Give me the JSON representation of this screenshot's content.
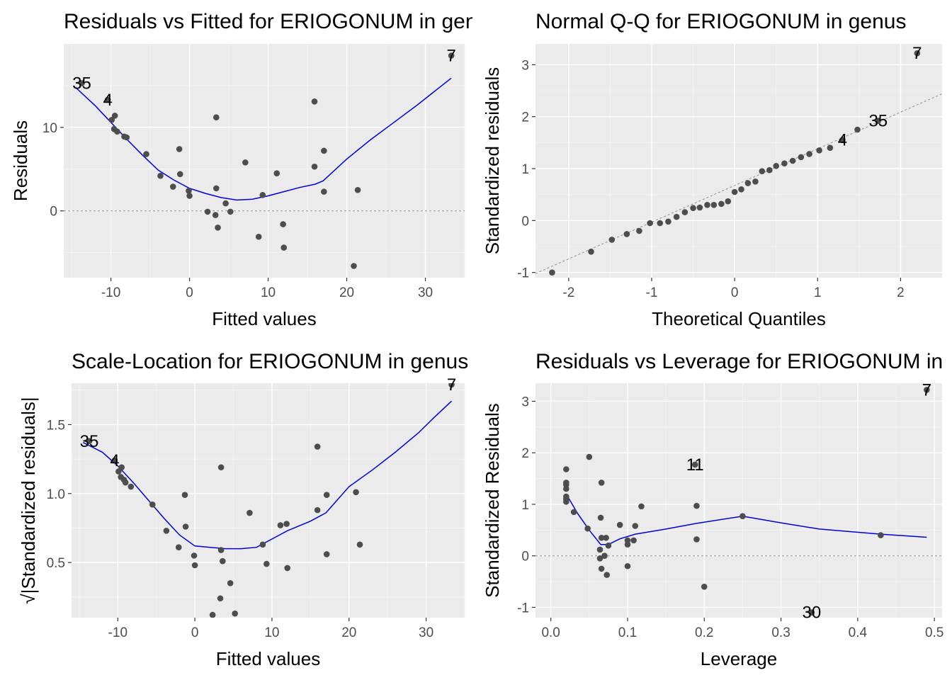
{
  "chart_data": [
    {
      "type": "scatter",
      "title": "Residuals vs Fitted for ERIOGONUM in genus",
      "xlabel": "Fitted values",
      "ylabel": "Residuals",
      "xlim": [
        -16,
        35
      ],
      "ylim": [
        -8,
        20
      ],
      "x_ticks": [
        -10,
        0,
        10,
        20,
        30
      ],
      "y_ticks": [
        0,
        10
      ],
      "grid": true,
      "reference_line": {
        "type": "horizontal",
        "y": 0,
        "style": "dashed"
      },
      "points": [
        {
          "x": 33.3,
          "y": 18.6
        },
        {
          "x": -13.7,
          "y": 15.3
        },
        {
          "x": -10.4,
          "y": 13.3
        },
        {
          "x": -9.5,
          "y": 11.4
        },
        {
          "x": -9.9,
          "y": 10.9
        },
        {
          "x": -9.6,
          "y": 9.8
        },
        {
          "x": -9.2,
          "y": 9.5
        },
        {
          "x": -8.3,
          "y": 8.9
        },
        {
          "x": -8.0,
          "y": 8.8
        },
        {
          "x": -5.5,
          "y": 6.8
        },
        {
          "x": -3.7,
          "y": 4.2
        },
        {
          "x": -2.1,
          "y": 2.9
        },
        {
          "x": -1.3,
          "y": 7.4
        },
        {
          "x": -1.2,
          "y": 4.4
        },
        {
          "x": -0.1,
          "y": 2.4
        },
        {
          "x": 0.0,
          "y": 1.8
        },
        {
          "x": 2.3,
          "y": -0.1
        },
        {
          "x": 3.4,
          "y": 11.2
        },
        {
          "x": 3.4,
          "y": 2.7
        },
        {
          "x": 3.3,
          "y": -0.5
        },
        {
          "x": 3.6,
          "y": -2.0
        },
        {
          "x": 4.6,
          "y": 0.9
        },
        {
          "x": 5.2,
          "y": -0.1
        },
        {
          "x": 7.1,
          "y": 5.8
        },
        {
          "x": 8.8,
          "y": -3.1
        },
        {
          "x": 9.3,
          "y": 1.9
        },
        {
          "x": 11.1,
          "y": 4.5
        },
        {
          "x": 11.9,
          "y": -1.6
        },
        {
          "x": 12.0,
          "y": -4.4
        },
        {
          "x": 15.9,
          "y": 13.1
        },
        {
          "x": 15.9,
          "y": 5.3
        },
        {
          "x": 17.1,
          "y": 7.2
        },
        {
          "x": 17.1,
          "y": 2.3
        },
        {
          "x": 20.9,
          "y": -6.6
        },
        {
          "x": 21.4,
          "y": 2.5
        }
      ],
      "point_labels": [
        {
          "text": "7",
          "x": 33.3,
          "y": 18.6
        },
        {
          "text": "35",
          "x": -13.7,
          "y": 15.3
        },
        {
          "text": "4",
          "x": -10.4,
          "y": 13.3
        }
      ],
      "smooth": [
        [
          -14.5,
          14.8
        ],
        [
          -12,
          12.6
        ],
        [
          -10,
          10.6
        ],
        [
          -8,
          8.6
        ],
        [
          -6,
          6.7
        ],
        [
          -4,
          4.9
        ],
        [
          -2,
          3.7
        ],
        [
          0,
          2.7
        ],
        [
          2,
          2.1
        ],
        [
          4,
          1.6
        ],
        [
          6,
          1.3
        ],
        [
          8,
          1.4
        ],
        [
          10,
          1.8
        ],
        [
          12,
          2.3
        ],
        [
          14,
          2.8
        ],
        [
          16,
          3.2
        ],
        [
          17,
          3.6
        ],
        [
          20,
          6.2
        ],
        [
          23,
          8.5
        ],
        [
          26,
          10.6
        ],
        [
          29,
          12.7
        ],
        [
          31,
          14.2
        ],
        [
          33.3,
          15.9
        ]
      ]
    },
    {
      "type": "scatter",
      "title": "Normal Q-Q for ERIOGONUM in genus",
      "xlabel": "Theoretical Quantiles",
      "ylabel": "Standardized residuals",
      "xlim": [
        -2.4,
        2.5
      ],
      "ylim": [
        -1.1,
        3.4
      ],
      "x_ticks": [
        -2,
        -1,
        0,
        1,
        2
      ],
      "y_ticks": [
        -1,
        0,
        1,
        2,
        3
      ],
      "grid": true,
      "reference_line": {
        "type": "diagonal",
        "points": [
          [
            -2.4,
            -1.02
          ],
          [
            2.5,
            2.44
          ]
        ],
        "style": "dashed"
      },
      "points": [
        {
          "x": -2.2,
          "y": -1.0
        },
        {
          "x": -1.73,
          "y": -0.6
        },
        {
          "x": -1.48,
          "y": -0.37
        },
        {
          "x": -1.3,
          "y": -0.26
        },
        {
          "x": -1.15,
          "y": -0.2
        },
        {
          "x": -1.02,
          "y": -0.05
        },
        {
          "x": -0.9,
          "y": -0.05
        },
        {
          "x": -0.8,
          "y": -0.02
        },
        {
          "x": -0.7,
          "y": 0.07
        },
        {
          "x": -0.6,
          "y": 0.16
        },
        {
          "x": -0.5,
          "y": 0.24
        },
        {
          "x": -0.42,
          "y": 0.25
        },
        {
          "x": -0.33,
          "y": 0.3
        },
        {
          "x": -0.25,
          "y": 0.3
        },
        {
          "x": -0.16,
          "y": 0.32
        },
        {
          "x": -0.08,
          "y": 0.37
        },
        {
          "x": 0.0,
          "y": 0.55
        },
        {
          "x": 0.08,
          "y": 0.6
        },
        {
          "x": 0.16,
          "y": 0.72
        },
        {
          "x": 0.25,
          "y": 0.75
        },
        {
          "x": 0.33,
          "y": 0.95
        },
        {
          "x": 0.42,
          "y": 0.97
        },
        {
          "x": 0.5,
          "y": 1.05
        },
        {
          "x": 0.6,
          "y": 1.1
        },
        {
          "x": 0.7,
          "y": 1.15
        },
        {
          "x": 0.8,
          "y": 1.22
        },
        {
          "x": 0.9,
          "y": 1.28
        },
        {
          "x": 1.02,
          "y": 1.35
        },
        {
          "x": 1.15,
          "y": 1.4
        },
        {
          "x": 1.3,
          "y": 1.55
        },
        {
          "x": 1.48,
          "y": 1.75
        },
        {
          "x": 1.73,
          "y": 1.92
        },
        {
          "x": 2.2,
          "y": 3.22
        }
      ],
      "point_labels": [
        {
          "text": "7",
          "x": 2.2,
          "y": 3.22
        },
        {
          "text": "35",
          "x": 1.73,
          "y": 1.92
        },
        {
          "text": "4",
          "x": 1.3,
          "y": 1.55
        }
      ]
    },
    {
      "type": "scatter",
      "title": "Scale-Location for ERIOGONUM in genus",
      "xlabel": "Fitted values",
      "ylabel": "√|Standardized residuals|",
      "xlim": [
        -16,
        35
      ],
      "ylim": [
        0.1,
        1.8
      ],
      "x_ticks": [
        -10,
        0,
        10,
        20,
        30
      ],
      "y_ticks": [
        0.5,
        1.0,
        1.5
      ],
      "grid": true,
      "points": [
        {
          "x": 33.3,
          "y": 1.79
        },
        {
          "x": -13.7,
          "y": 1.38
        },
        {
          "x": -10.4,
          "y": 1.24
        },
        {
          "x": -9.5,
          "y": 1.19
        },
        {
          "x": -9.9,
          "y": 1.16
        },
        {
          "x": -9.6,
          "y": 1.12
        },
        {
          "x": -9.2,
          "y": 1.1
        },
        {
          "x": -8.3,
          "y": 1.05
        },
        {
          "x": -9.0,
          "y": 1.08
        },
        {
          "x": -5.5,
          "y": 0.92
        },
        {
          "x": -3.7,
          "y": 0.73
        },
        {
          "x": -2.1,
          "y": 0.61
        },
        {
          "x": -1.3,
          "y": 0.99
        },
        {
          "x": -1.2,
          "y": 0.76
        },
        {
          "x": -0.1,
          "y": 0.55
        },
        {
          "x": 0.0,
          "y": 0.48
        },
        {
          "x": 2.3,
          "y": 0.12
        },
        {
          "x": 3.4,
          "y": 1.19
        },
        {
          "x": 3.4,
          "y": 0.59
        },
        {
          "x": 3.3,
          "y": 0.24
        },
        {
          "x": 3.6,
          "y": 0.51
        },
        {
          "x": 4.6,
          "y": 0.35
        },
        {
          "x": 5.2,
          "y": 0.13
        },
        {
          "x": 7.1,
          "y": 0.86
        },
        {
          "x": 8.8,
          "y": 0.63
        },
        {
          "x": 9.3,
          "y": 0.49
        },
        {
          "x": 11.1,
          "y": 0.77
        },
        {
          "x": 11.9,
          "y": 0.78
        },
        {
          "x": 12.0,
          "y": 0.46
        },
        {
          "x": 15.9,
          "y": 1.34
        },
        {
          "x": 15.9,
          "y": 0.88
        },
        {
          "x": 17.1,
          "y": 0.99
        },
        {
          "x": 17.1,
          "y": 0.56
        },
        {
          "x": 20.9,
          "y": 1.01
        },
        {
          "x": 21.4,
          "y": 0.63
        }
      ],
      "point_labels": [
        {
          "text": "7",
          "x": 33.3,
          "y": 1.79
        },
        {
          "text": "35",
          "x": -13.7,
          "y": 1.38
        },
        {
          "text": "4",
          "x": -10.4,
          "y": 1.24
        }
      ],
      "smooth": [
        [
          -14.5,
          1.37
        ],
        [
          -12,
          1.3
        ],
        [
          -10,
          1.2
        ],
        [
          -8,
          1.08
        ],
        [
          -6,
          0.95
        ],
        [
          -4,
          0.82
        ],
        [
          -2,
          0.7
        ],
        [
          0,
          0.62
        ],
        [
          2,
          0.61
        ],
        [
          4,
          0.6
        ],
        [
          6,
          0.6
        ],
        [
          8,
          0.61
        ],
        [
          10,
          0.67
        ],
        [
          12,
          0.73
        ],
        [
          15,
          0.8
        ],
        [
          17,
          0.86
        ],
        [
          20,
          1.05
        ],
        [
          23,
          1.17
        ],
        [
          26,
          1.3
        ],
        [
          29,
          1.44
        ],
        [
          31,
          1.55
        ],
        [
          33.3,
          1.67
        ]
      ]
    },
    {
      "type": "scatter",
      "title": "Residuals vs Leverage for ERIOGONUM in genus",
      "xlabel": "Leverage",
      "ylabel": "Standardized Residuals",
      "xlim": [
        -0.02,
        0.51
      ],
      "ylim": [
        -1.2,
        3.35
      ],
      "x_ticks": [
        0.0,
        0.1,
        0.2,
        0.3,
        0.4,
        0.5
      ],
      "y_ticks": [
        -1,
        0,
        1,
        2,
        3
      ],
      "grid": true,
      "reference_line": {
        "type": "horizontal",
        "y": 0,
        "style": "dashed"
      },
      "points": [
        {
          "x": 0.49,
          "y": 3.22
        },
        {
          "x": 0.02,
          "y": 1.68
        },
        {
          "x": 0.02,
          "y": 1.42
        },
        {
          "x": 0.02,
          "y": 1.38
        },
        {
          "x": 0.02,
          "y": 1.3
        },
        {
          "x": 0.02,
          "y": 1.15
        },
        {
          "x": 0.02,
          "y": 1.1
        },
        {
          "x": 0.02,
          "y": 1.05
        },
        {
          "x": 0.03,
          "y": 0.85
        },
        {
          "x": 0.05,
          "y": 1.92
        },
        {
          "x": 0.048,
          "y": 0.53
        },
        {
          "x": 0.066,
          "y": 1.42
        },
        {
          "x": 0.065,
          "y": 0.74
        },
        {
          "x": 0.066,
          "y": 0.35
        },
        {
          "x": 0.064,
          "y": 0.12
        },
        {
          "x": 0.064,
          "y": -0.05
        },
        {
          "x": 0.066,
          "y": -0.25
        },
        {
          "x": 0.07,
          "y": 0.0
        },
        {
          "x": 0.072,
          "y": 0.35
        },
        {
          "x": 0.073,
          "y": -0.37
        },
        {
          "x": 0.075,
          "y": 0.2
        },
        {
          "x": 0.09,
          "y": 0.6
        },
        {
          "x": 0.1,
          "y": 0.3
        },
        {
          "x": 0.1,
          "y": 0.22
        },
        {
          "x": 0.1,
          "y": -0.2
        },
        {
          "x": 0.108,
          "y": 0.3
        },
        {
          "x": 0.11,
          "y": 0.58
        },
        {
          "x": 0.118,
          "y": 0.96
        },
        {
          "x": 0.188,
          "y": 1.77
        },
        {
          "x": 0.19,
          "y": 0.97
        },
        {
          "x": 0.19,
          "y": 0.32
        },
        {
          "x": 0.2,
          "y": -0.6
        },
        {
          "x": 0.25,
          "y": 0.77
        },
        {
          "x": 0.34,
          "y": -1.1
        },
        {
          "x": 0.43,
          "y": 0.4
        }
      ],
      "point_labels": [
        {
          "text": "7",
          "x": 0.49,
          "y": 3.22
        },
        {
          "text": "11",
          "x": 0.188,
          "y": 1.77
        },
        {
          "text": "30",
          "x": 0.34,
          "y": -1.1
        }
      ],
      "smooth": [
        [
          0.02,
          1.2
        ],
        [
          0.035,
          0.82
        ],
        [
          0.05,
          0.5
        ],
        [
          0.065,
          0.22
        ],
        [
          0.075,
          0.22
        ],
        [
          0.09,
          0.33
        ],
        [
          0.11,
          0.42
        ],
        [
          0.15,
          0.52
        ],
        [
          0.19,
          0.63
        ],
        [
          0.25,
          0.77
        ],
        [
          0.3,
          0.64
        ],
        [
          0.35,
          0.52
        ],
        [
          0.43,
          0.42
        ],
        [
          0.49,
          0.36
        ]
      ]
    }
  ]
}
